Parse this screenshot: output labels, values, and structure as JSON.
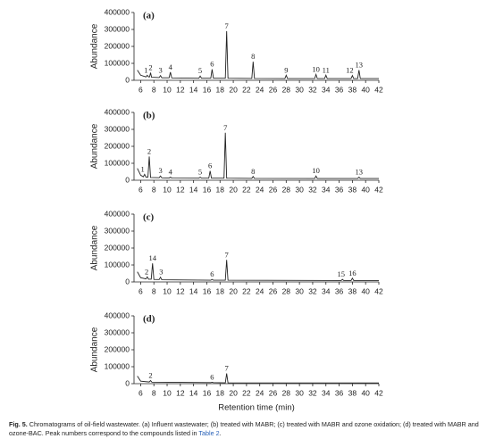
{
  "chart_data": [
    {
      "type": "line",
      "title": "(a)",
      "ylabel": "Abundance",
      "color": "#222222",
      "xlim": [
        5,
        42
      ],
      "ylim": [
        0,
        400000
      ],
      "xticks": [
        6,
        8,
        10,
        12,
        14,
        16,
        18,
        20,
        22,
        24,
        26,
        28,
        30,
        32,
        34,
        36,
        38,
        40,
        42
      ],
      "yticks": [
        0,
        100000,
        200000,
        300000,
        400000
      ],
      "x": [
        5.5,
        6,
        6.8,
        7,
        7.2,
        7.35,
        7.5,
        7.65,
        8.8,
        9,
        9.2,
        10.3,
        10.5,
        10.7,
        14.8,
        15,
        15.2,
        16.6,
        16.8,
        17,
        18.8,
        19,
        19.2,
        22.8,
        23,
        23.2,
        27.8,
        28,
        28.2,
        32.3,
        32.5,
        32.7,
        33.8,
        34,
        34.2,
        37.8,
        38,
        38.2,
        38.8,
        39,
        39.2,
        42
      ],
      "values": [
        60000,
        30000,
        20000,
        30000,
        20000,
        20000,
        45000,
        18000,
        16000,
        28000,
        15000,
        15000,
        48000,
        14000,
        12000,
        25000,
        12000,
        12000,
        65000,
        12000,
        12000,
        290000,
        12000,
        11000,
        110000,
        11000,
        10000,
        30000,
        10000,
        10000,
        35000,
        10000,
        10000,
        30000,
        10000,
        10000,
        28000,
        10000,
        10000,
        60000,
        10000,
        10000
      ],
      "peaks": [
        {
          "text": "1",
          "x": 6.8,
          "y": 30000
        },
        {
          "text": "2",
          "x": 7.5,
          "y": 45000
        },
        {
          "text": "3",
          "x": 9,
          "y": 28000
        },
        {
          "text": "4",
          "x": 10.5,
          "y": 48000
        },
        {
          "text": "5",
          "x": 15,
          "y": 25000
        },
        {
          "text": "6",
          "x": 16.8,
          "y": 65000
        },
        {
          "text": "7",
          "x": 19,
          "y": 290000
        },
        {
          "text": "8",
          "x": 23,
          "y": 110000
        },
        {
          "text": "9",
          "x": 28,
          "y": 30000
        },
        {
          "text": "10",
          "x": 32.5,
          "y": 35000
        },
        {
          "text": "11",
          "x": 34,
          "y": 30000
        },
        {
          "text": "12",
          "x": 37.6,
          "y": 28000
        },
        {
          "text": "13",
          "x": 39,
          "y": 60000
        }
      ]
    },
    {
      "type": "line",
      "title": "(b)",
      "ylabel": "Abundance",
      "color": "#222222",
      "xlim": [
        5,
        42
      ],
      "ylim": [
        0,
        400000
      ],
      "xticks": [
        6,
        8,
        10,
        12,
        14,
        16,
        18,
        20,
        22,
        24,
        26,
        28,
        30,
        32,
        34,
        36,
        38,
        40,
        42
      ],
      "yticks": [
        0,
        100000,
        200000,
        300000,
        400000
      ],
      "x": [
        5.5,
        6,
        6.4,
        6.6,
        6.8,
        7.1,
        7.3,
        7.5,
        8.8,
        9,
        9.2,
        10.3,
        10.5,
        10.7,
        14.8,
        15,
        15.2,
        16.3,
        16.5,
        16.7,
        18.6,
        18.8,
        19,
        22.8,
        23,
        23.2,
        32.3,
        32.5,
        32.7,
        38.8,
        39,
        39.2,
        42
      ],
      "values": [
        70000,
        30000,
        20000,
        35000,
        18000,
        18000,
        140000,
        16000,
        15000,
        25000,
        14000,
        13000,
        18000,
        13000,
        12000,
        18000,
        12000,
        12000,
        55000,
        12000,
        12000,
        280000,
        12000,
        11000,
        22000,
        11000,
        10000,
        25000,
        10000,
        10000,
        18000,
        10000,
        10000
      ],
      "peaks": [
        {
          "text": "1",
          "x": 6.3,
          "y": 35000
        },
        {
          "text": "2",
          "x": 7.3,
          "y": 140000
        },
        {
          "text": "3",
          "x": 9,
          "y": 25000
        },
        {
          "text": "4",
          "x": 10.5,
          "y": 18000
        },
        {
          "text": "5",
          "x": 15,
          "y": 18000
        },
        {
          "text": "6",
          "x": 16.5,
          "y": 55000
        },
        {
          "text": "7",
          "x": 18.8,
          "y": 280000
        },
        {
          "text": "8",
          "x": 23,
          "y": 22000
        },
        {
          "text": "10",
          "x": 32.5,
          "y": 25000
        },
        {
          "text": "13",
          "x": 39,
          "y": 18000
        }
      ]
    },
    {
      "type": "line",
      "title": "(c)",
      "ylabel": "Abundance",
      "color": "#222222",
      "xlim": [
        5,
        42
      ],
      "ylim": [
        0,
        400000
      ],
      "xticks": [
        6,
        8,
        10,
        12,
        14,
        16,
        18,
        20,
        22,
        24,
        26,
        28,
        30,
        32,
        34,
        36,
        38,
        40,
        42
      ],
      "yticks": [
        0,
        100000,
        200000,
        300000,
        400000
      ],
      "x": [
        5.5,
        6,
        6.8,
        7,
        7.2,
        7.6,
        7.8,
        8,
        8.8,
        9,
        9.2,
        16.6,
        16.8,
        17,
        18.8,
        19,
        19.2,
        36.3,
        36.5,
        36.7,
        37.8,
        38,
        38.2,
        42
      ],
      "values": [
        60000,
        25000,
        18000,
        30000,
        16000,
        16000,
        110000,
        15000,
        14000,
        28000,
        13000,
        10000,
        15000,
        10000,
        10000,
        130000,
        10000,
        8000,
        15000,
        8000,
        8000,
        22000,
        8000,
        8000
      ],
      "peaks": [
        {
          "text": "2",
          "x": 6.9,
          "y": 30000
        },
        {
          "text": "14",
          "x": 7.8,
          "y": 110000
        },
        {
          "text": "3",
          "x": 9.1,
          "y": 28000
        },
        {
          "text": "6",
          "x": 16.8,
          "y": 15000
        },
        {
          "text": "7",
          "x": 19,
          "y": 130000
        },
        {
          "text": "15",
          "x": 36.3,
          "y": 15000
        },
        {
          "text": "16",
          "x": 38,
          "y": 22000
        }
      ]
    },
    {
      "type": "line",
      "title": "(d)",
      "ylabel": "Abundance",
      "xlabel": "Retention time (min)",
      "color": "#222222",
      "xlim": [
        5,
        42
      ],
      "ylim": [
        0,
        400000
      ],
      "xticks": [
        6,
        8,
        10,
        12,
        14,
        16,
        18,
        20,
        22,
        24,
        26,
        28,
        30,
        32,
        34,
        36,
        38,
        40,
        42
      ],
      "yticks": [
        0,
        100000,
        200000,
        300000,
        400000
      ],
      "x": [
        5.5,
        6,
        7.3,
        7.5,
        7.7,
        16.6,
        16.8,
        17,
        18.8,
        19,
        19.2,
        42
      ],
      "values": [
        45000,
        15000,
        10000,
        18000,
        9000,
        6000,
        8000,
        6000,
        5000,
        60000,
        5000,
        4000
      ],
      "peaks": [
        {
          "text": "2",
          "x": 7.5,
          "y": 18000
        },
        {
          "text": "6",
          "x": 16.8,
          "y": 8000
        },
        {
          "text": "7",
          "x": 19,
          "y": 60000
        }
      ]
    }
  ],
  "caption": {
    "label": "Fig. 5.",
    "text": " Chromatograms of oil-field wastewater. (a) Influent wastewater; (b) treated with MABR; (c) treated with MABR and ozone oxidation; (d) treated with MABR and ozone-BAC. Peak numbers correspond to the compounds listed in ",
    "link": "Table 2",
    "end": "."
  }
}
